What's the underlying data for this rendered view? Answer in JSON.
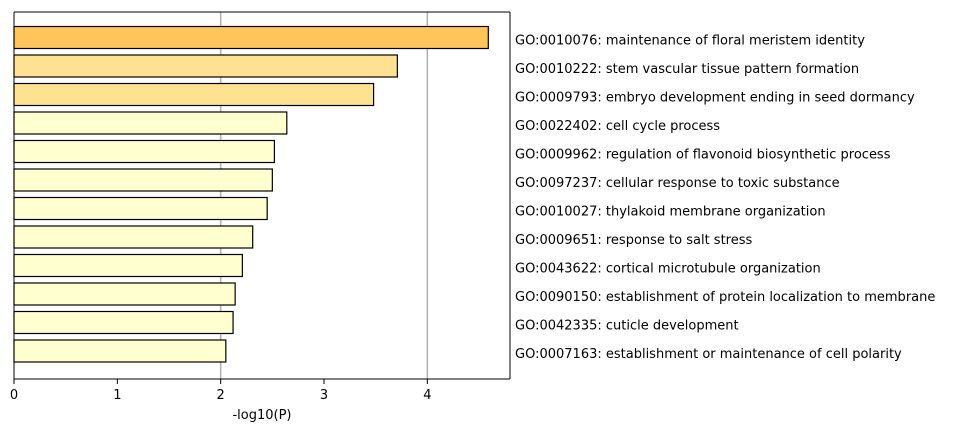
{
  "chart_data": {
    "type": "bar",
    "orientation": "horizontal",
    "xlabel": "-log10(P)",
    "ylabel": "",
    "xlim": [
      0,
      4.8
    ],
    "xticks": [
      0,
      1,
      2,
      3,
      4
    ],
    "vertical_gridlines_at": [
      2,
      4
    ],
    "categories": [
      "GO:0010076: maintenance of floral meristem identity",
      "GO:0010222: stem vascular tissue pattern formation",
      "GO:0009793: embryo development ending in seed dormancy",
      "GO:0022402: cell cycle process",
      "GO:0009962: regulation of flavonoid biosynthetic process",
      "GO:0097237: cellular response to toxic substance",
      "GO:0010027: thylakoid membrane organization",
      "GO:0009651: response to salt stress",
      "GO:0043622: cortical microtubule organization",
      "GO:0090150: establishment of protein localization to membrane",
      "GO:0042335: cuticle development",
      "GO:0007163: establishment or maintenance of cell polarity"
    ],
    "values": [
      4.59,
      3.71,
      3.48,
      2.64,
      2.52,
      2.5,
      2.45,
      2.31,
      2.21,
      2.14,
      2.12,
      2.05
    ],
    "colors": [
      "#ffc55a",
      "#ffe291",
      "#ffe291",
      "#ffffd0",
      "#ffffd0",
      "#ffffd0",
      "#ffffd0",
      "#ffffd0",
      "#ffffd0",
      "#ffffd0",
      "#ffffd0",
      "#ffffd0"
    ]
  }
}
